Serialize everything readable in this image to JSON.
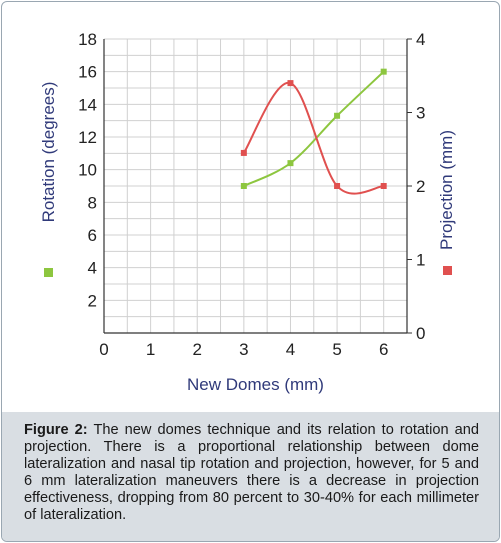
{
  "chart_data": {
    "type": "line",
    "xlabel": "New Domes (mm)",
    "x_ticks": [
      "0",
      "1",
      "2",
      "3",
      "4",
      "5",
      "6"
    ],
    "xlim": [
      0,
      6.5
    ],
    "left_axis": {
      "label": "Rotation (degrees)",
      "ylim": [
        0,
        18
      ],
      "ticks": [
        "2",
        "4",
        "6",
        "8",
        "10",
        "12",
        "14",
        "16",
        "18"
      ]
    },
    "right_axis": {
      "label": "Projection (mm)",
      "ylim": [
        0,
        4
      ],
      "ticks": [
        "0",
        "1",
        "2",
        "3",
        "4"
      ]
    },
    "grid": true,
    "series": [
      {
        "axis": "left",
        "color": "#8dc63f",
        "x": [
          3,
          4,
          5,
          6
        ],
        "values": [
          9.0,
          10.4,
          13.3,
          16.0
        ]
      },
      {
        "axis": "right",
        "color": "#e0504f",
        "x": [
          3,
          4,
          5,
          6
        ],
        "values": [
          2.45,
          3.4,
          2.0,
          2.0
        ]
      }
    ]
  },
  "caption": {
    "label": "Figure 2:",
    "text": "The new domes technique and its relation to rotation and projection. There is a proportional relationship between dome lateralization and nasal tip rotation and projection, however, for 5 and 6 mm lateralization maneuvers there is a decrease in projection effectiveness, dropping from 80 percent to 30-40% for each millimeter of lateralization."
  }
}
